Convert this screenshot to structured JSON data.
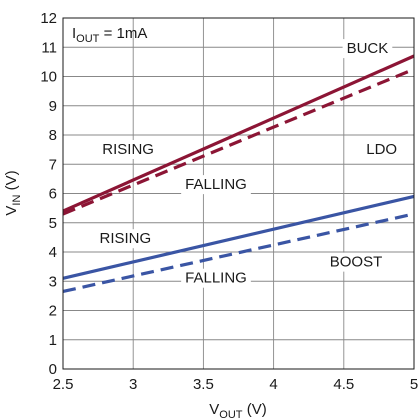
{
  "chart_data": {
    "type": "line",
    "xlabel": "V",
    "xlabel_sub": "OUT",
    "xlabel_unit": " (V)",
    "ylabel": "V",
    "ylabel_sub": "IN",
    "ylabel_unit": " (V)",
    "xlim": [
      2.5,
      5
    ],
    "ylim": [
      0,
      12
    ],
    "xticks": [
      "2.5",
      "3",
      "3.5",
      "4",
      "4.5",
      "5"
    ],
    "yticks": [
      "0",
      "1",
      "2",
      "3",
      "4",
      "5",
      "6",
      "7",
      "8",
      "9",
      "10",
      "11",
      "12"
    ],
    "grid": true,
    "condition": {
      "main": "I",
      "sub": "OUT",
      "rest": " = 1mA"
    },
    "series": [
      {
        "name": "BUCK RISING",
        "color": "#8c1535",
        "dash": false,
        "x": [
          2.5,
          5
        ],
        "y": [
          5.4,
          10.7
        ]
      },
      {
        "name": "BUCK FALLING",
        "color": "#8c1535",
        "dash": true,
        "x": [
          2.5,
          5
        ],
        "y": [
          5.3,
          10.25
        ]
      },
      {
        "name": "BOOST RISING",
        "color": "#3a55a4",
        "dash": false,
        "x": [
          2.5,
          5
        ],
        "y": [
          3.1,
          5.9
        ]
      },
      {
        "name": "BOOST FALLING",
        "color": "#3a55a4",
        "dash": true,
        "x": [
          2.5,
          5
        ],
        "y": [
          2.65,
          5.3
        ]
      }
    ],
    "annotations": [
      {
        "text": "BUCK",
        "x": 4.52,
        "y": 10.8
      },
      {
        "text": "RISING",
        "x": 2.78,
        "y": 7.35
      },
      {
        "text": "FALLING",
        "x": 3.37,
        "y": 6.15
      },
      {
        "text": "LDO",
        "x": 4.66,
        "y": 7.35
      },
      {
        "text": "RISING",
        "x": 2.76,
        "y": 4.3
      },
      {
        "text": "FALLING",
        "x": 3.37,
        "y": 2.95
      },
      {
        "text": "BOOST",
        "x": 4.4,
        "y": 3.5
      }
    ]
  }
}
